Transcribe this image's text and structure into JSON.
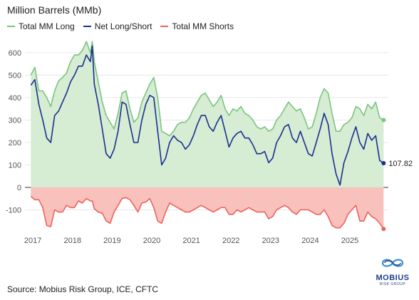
{
  "chart_data": {
    "type": "area",
    "title": "Million Barrels (MMb)",
    "xlabel": "",
    "ylabel": "",
    "ylim": [
      -200,
      660
    ],
    "yticks": [
      -100,
      0,
      100,
      200,
      300,
      400,
      500,
      600
    ],
    "xlim": [
      2016.8,
      2025.97
    ],
    "xticks": [
      2017,
      2018,
      2019,
      2020,
      2021,
      2022,
      2023,
      2024,
      2025
    ],
    "grid": "horizontal",
    "legend_position": "top-left",
    "x": [
      2016.95,
      2017.05,
      2017.15,
      2017.25,
      2017.35,
      2017.45,
      2017.55,
      2017.65,
      2017.75,
      2017.85,
      2017.95,
      2018.05,
      2018.15,
      2018.25,
      2018.35,
      2018.45,
      2018.5,
      2018.55,
      2018.65,
      2018.75,
      2018.85,
      2018.95,
      2019.05,
      2019.15,
      2019.25,
      2019.35,
      2019.45,
      2019.55,
      2019.65,
      2019.75,
      2019.85,
      2019.95,
      2020.05,
      2020.15,
      2020.25,
      2020.35,
      2020.45,
      2020.55,
      2020.65,
      2020.75,
      2020.85,
      2020.95,
      2021.05,
      2021.15,
      2021.25,
      2021.35,
      2021.45,
      2021.55,
      2021.65,
      2021.75,
      2021.85,
      2021.95,
      2022.05,
      2022.15,
      2022.25,
      2022.35,
      2022.45,
      2022.55,
      2022.65,
      2022.75,
      2022.85,
      2022.95,
      2023.05,
      2023.15,
      2023.25,
      2023.35,
      2023.45,
      2023.55,
      2023.65,
      2023.75,
      2023.85,
      2023.95,
      2024.05,
      2024.15,
      2024.25,
      2024.35,
      2024.45,
      2024.55,
      2024.65,
      2024.75,
      2024.85,
      2024.95,
      2025.05,
      2025.15,
      2025.25,
      2025.35,
      2025.45,
      2025.55,
      2025.65,
      2025.75,
      2025.85
    ],
    "series": [
      {
        "name": "Total MM Long",
        "color": "#7bc47f",
        "values": [
          500,
          535,
          430,
          430,
          400,
          360,
          430,
          475,
          490,
          510,
          560,
          590,
          590,
          610,
          650,
          600,
          650,
          560,
          470,
          380,
          320,
          290,
          260,
          330,
          420,
          430,
          350,
          290,
          310,
          380,
          420,
          460,
          490,
          400,
          250,
          240,
          230,
          250,
          280,
          290,
          290,
          310,
          350,
          380,
          410,
          420,
          390,
          360,
          380,
          410,
          350,
          320,
          350,
          340,
          360,
          330,
          320,
          300,
          270,
          260,
          270,
          250,
          260,
          300,
          320,
          350,
          380,
          360,
          340,
          350,
          310,
          260,
          270,
          330,
          400,
          440,
          420,
          330,
          250,
          250,
          280,
          290,
          310,
          360,
          350,
          320,
          370,
          350,
          380,
          310,
          300
        ]
      },
      {
        "name": "Net Long/Short",
        "color": "#1a2f8f",
        "values": [
          455,
          480,
          370,
          300,
          220,
          200,
          320,
          340,
          380,
          420,
          470,
          500,
          540,
          540,
          590,
          560,
          630,
          460,
          370,
          260,
          150,
          130,
          170,
          250,
          380,
          370,
          280,
          200,
          200,
          300,
          370,
          410,
          400,
          250,
          100,
          130,
          200,
          230,
          210,
          200,
          170,
          190,
          230,
          280,
          320,
          320,
          270,
          250,
          290,
          320,
          250,
          180,
          220,
          240,
          250,
          220,
          220,
          190,
          150,
          150,
          160,
          110,
          130,
          200,
          230,
          270,
          280,
          220,
          200,
          250,
          200,
          150,
          140,
          200,
          260,
          330,
          280,
          150,
          60,
          10,
          110,
          160,
          220,
          270,
          200,
          170,
          240,
          210,
          230,
          120,
          108
        ]
      },
      {
        "name": "Total MM Shorts",
        "color": "#f2605a",
        "values": [
          -40,
          -55,
          -55,
          -90,
          -170,
          -175,
          -100,
          -110,
          -110,
          -80,
          -90,
          -90,
          -60,
          -70,
          -50,
          -60,
          -60,
          -95,
          -110,
          -115,
          -150,
          -160,
          -110,
          -80,
          -50,
          -45,
          -55,
          -80,
          -110,
          -70,
          -65,
          -50,
          -90,
          -150,
          -160,
          -110,
          -70,
          -80,
          -90,
          -100,
          -110,
          -110,
          -100,
          -90,
          -80,
          -90,
          -100,
          -110,
          -100,
          -90,
          -90,
          -120,
          -120,
          -100,
          -110,
          -100,
          -90,
          -100,
          -110,
          -110,
          -110,
          -140,
          -130,
          -100,
          -90,
          -80,
          -90,
          -110,
          -120,
          -100,
          -100,
          -100,
          -110,
          -120,
          -120,
          -100,
          -130,
          -170,
          -180,
          -180,
          -160,
          -120,
          -100,
          -80,
          -150,
          -150,
          -110,
          -130,
          -140,
          -160,
          -185
        ]
      }
    ],
    "last_value_label": "107.82"
  },
  "legend": [
    {
      "label": "Total MM Long",
      "color": "#7bc47f"
    },
    {
      "label": "Net Long/Short",
      "color": "#1a2f8f"
    },
    {
      "label": "Total MM Shorts",
      "color": "#f2605a"
    }
  ],
  "footer": {
    "source": "Source: Mobius Risk Group, ICE, CFTC"
  },
  "logo": {
    "word": "MOBIUS",
    "sub": "RISK GROUP"
  }
}
